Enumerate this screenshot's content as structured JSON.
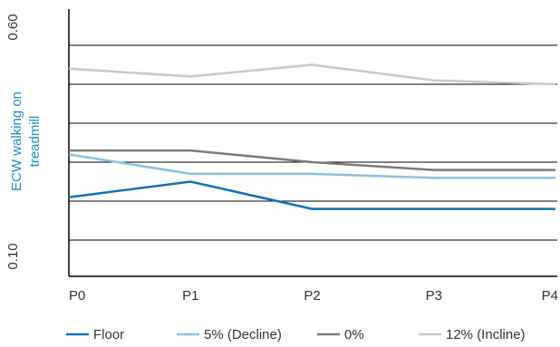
{
  "chart_data": {
    "type": "line",
    "x": [
      "P0",
      "P1",
      "P2",
      "P3",
      "P4"
    ],
    "ylabel": "ECW walking on treadmill",
    "ylabel_lines": [
      "ECW walking on",
      "treadmill"
    ],
    "ylabel_color": "#1f8cc7",
    "yticks_shown": [
      "0.10",
      "0.60"
    ],
    "ylim": [
      0.1,
      0.6
    ],
    "grid": true,
    "legend_position": "bottom",
    "series": [
      {
        "name": "Floor",
        "color": "#1070b0",
        "values": [
          0.21,
          0.25,
          0.18,
          0.18,
          0.18
        ]
      },
      {
        "name": "5% (Decline)",
        "color": "#8dbfe0",
        "values": [
          0.32,
          0.27,
          0.27,
          0.26,
          0.26
        ]
      },
      {
        "name": "0%",
        "color": "#7a7a7a",
        "values": [
          0.33,
          0.33,
          0.3,
          0.28,
          0.28
        ]
      },
      {
        "name": "12% (Incline)",
        "color": "#c8c8c8",
        "values": [
          0.54,
          0.52,
          0.55,
          0.51,
          0.5
        ]
      }
    ]
  }
}
